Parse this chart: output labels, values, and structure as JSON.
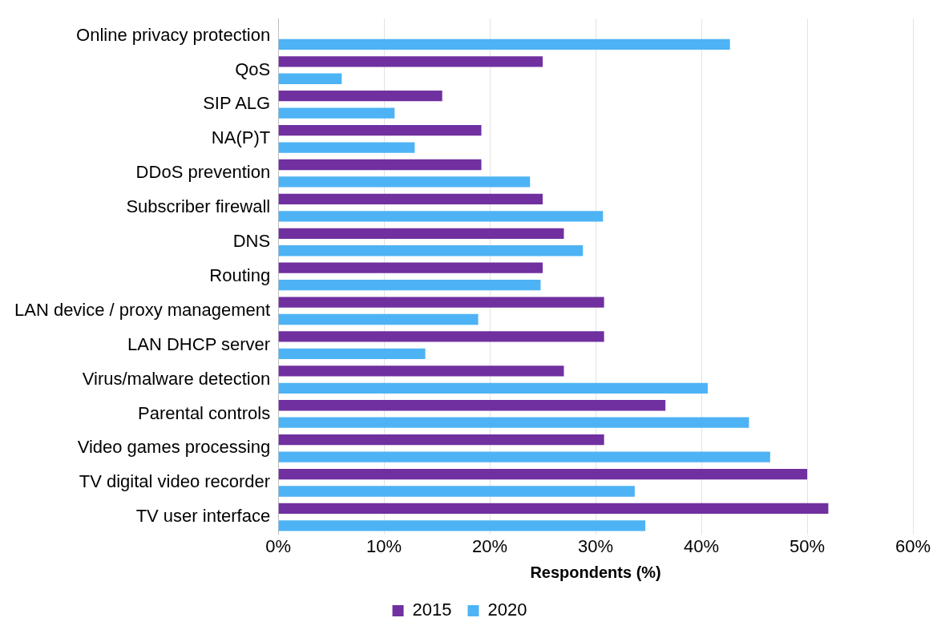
{
  "chart_data": {
    "type": "bar",
    "orientation": "horizontal",
    "xlabel": "Respondents (%)",
    "categories": [
      "Online privacy protection",
      "QoS",
      "SIP ALG",
      "NA(P)T",
      "DDoS prevention",
      "Subscriber firewall",
      "DNS",
      "Routing",
      "LAN device / proxy management",
      "LAN DHCP server",
      "Virus/malware detection",
      "Parental controls",
      "Video games processing",
      "TV digital video recorder",
      "TV user interface"
    ],
    "series": [
      {
        "name": "2015",
        "color": "#7030a0",
        "values": [
          null,
          25.0,
          15.5,
          19.2,
          19.2,
          25.0,
          27.0,
          25.0,
          30.8,
          30.8,
          27.0,
          36.6,
          30.8,
          50.0,
          52.0
        ]
      },
      {
        "name": "2020",
        "color": "#4db3f5",
        "values": [
          42.7,
          6.0,
          11.0,
          12.9,
          23.8,
          30.7,
          28.8,
          24.8,
          18.9,
          13.9,
          40.6,
          44.5,
          46.5,
          33.7,
          34.7
        ]
      }
    ],
    "xlim": [
      0,
      60
    ],
    "xticks": [
      {
        "value": 0,
        "label": "0%"
      },
      {
        "value": 10,
        "label": "10%"
      },
      {
        "value": 20,
        "label": "20%"
      },
      {
        "value": 30,
        "label": "30%"
      },
      {
        "value": 40,
        "label": "40%"
      },
      {
        "value": 50,
        "label": "50%"
      },
      {
        "value": 60,
        "label": "60%"
      }
    ],
    "grid": "x",
    "legend": "bottom"
  }
}
